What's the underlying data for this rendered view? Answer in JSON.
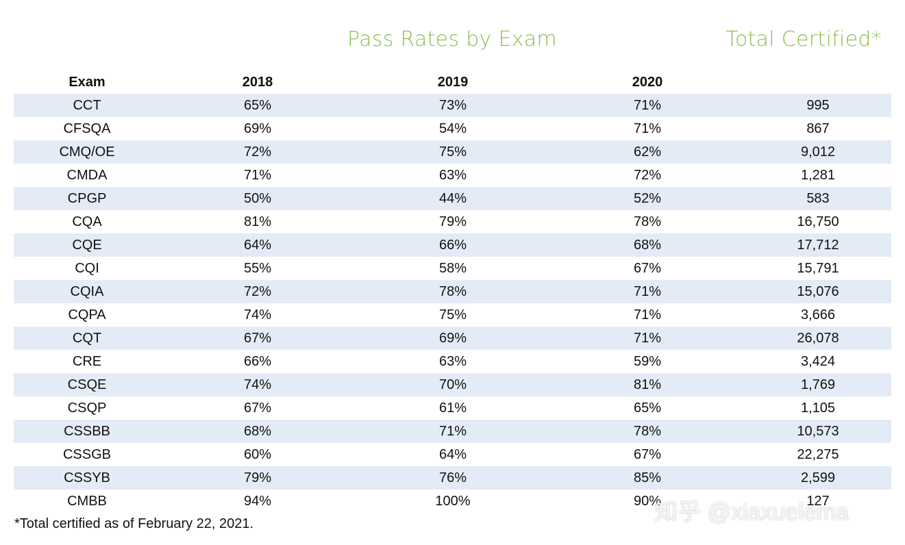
{
  "header": {
    "pass_title": "Pass Rates by Exam",
    "total_title": "Total Certified*"
  },
  "table": {
    "columns": [
      "Exam",
      "2018",
      "2019",
      "2020"
    ],
    "rows": [
      [
        "CCT",
        "65%",
        "73%",
        "71%",
        "995"
      ],
      [
        "CFSQA",
        "69%",
        "54%",
        "71%",
        "867"
      ],
      [
        "CMQ/OE",
        "72%",
        "75%",
        "62%",
        "9,012"
      ],
      [
        "CMDA",
        "71%",
        "63%",
        "72%",
        "1,281"
      ],
      [
        "CPGP",
        "50%",
        "44%",
        "52%",
        "583"
      ],
      [
        "CQA",
        "81%",
        "79%",
        "78%",
        "16,750"
      ],
      [
        "CQE",
        "64%",
        "66%",
        "68%",
        "17,712"
      ],
      [
        "CQI",
        "55%",
        "58%",
        "67%",
        "15,791"
      ],
      [
        "CQIA",
        "72%",
        "78%",
        "71%",
        "15,076"
      ],
      [
        "CQPA",
        "74%",
        "75%",
        "71%",
        "3,666"
      ],
      [
        "CQT",
        "67%",
        "69%",
        "71%",
        "26,078"
      ],
      [
        "CRE",
        "66%",
        "63%",
        "59%",
        "3,424"
      ],
      [
        "CSQE",
        "74%",
        "70%",
        "81%",
        "1,769"
      ],
      [
        "CSQP",
        "67%",
        "61%",
        "65%",
        "1,105"
      ],
      [
        "CSSBB",
        "68%",
        "71%",
        "78%",
        "10,573"
      ],
      [
        "CSSGB",
        "60%",
        "64%",
        "67%",
        "22,275"
      ],
      [
        "CSSYB",
        "79%",
        "76%",
        "85%",
        "2,599"
      ],
      [
        "CMBB",
        "94%",
        "100%",
        "90%",
        "127"
      ]
    ]
  },
  "footnote": "*Total certified as of February 22, 2021.",
  "watermark": "知乎 @xiaxuelema"
}
